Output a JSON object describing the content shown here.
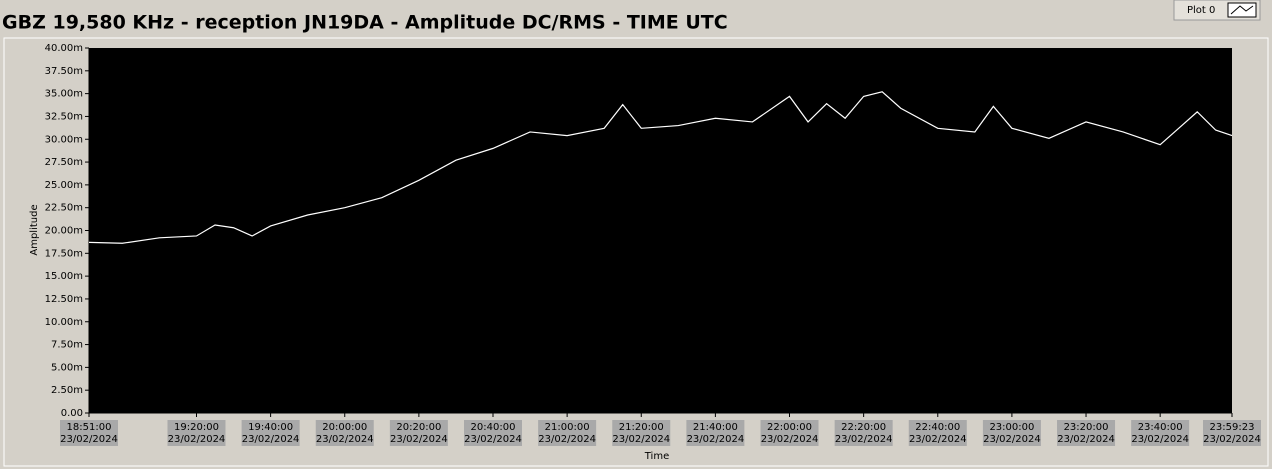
{
  "chart_data": {
    "type": "line",
    "title": "GBZ  19,580 KHz - reception JN19DA -  Amplitude DC/RMS   - TIME UTC",
    "legend": "Plot 0",
    "x_label": "Time",
    "y_label": "Amplitude",
    "x": [
      "2024-02-23T18:51:00",
      "2024-02-23T19:00:00",
      "2024-02-23T19:10:00",
      "2024-02-23T19:20:00",
      "2024-02-23T19:25:00",
      "2024-02-23T19:30:00",
      "2024-02-23T19:35:00",
      "2024-02-23T19:40:00",
      "2024-02-23T19:50:00",
      "2024-02-23T20:00:00",
      "2024-02-23T20:10:00",
      "2024-02-23T20:20:00",
      "2024-02-23T20:30:00",
      "2024-02-23T20:40:00",
      "2024-02-23T20:50:00",
      "2024-02-23T21:00:00",
      "2024-02-23T21:10:00",
      "2024-02-23T21:15:00",
      "2024-02-23T21:20:00",
      "2024-02-23T21:30:00",
      "2024-02-23T21:40:00",
      "2024-02-23T21:50:00",
      "2024-02-23T22:00:00",
      "2024-02-23T22:05:00",
      "2024-02-23T22:10:00",
      "2024-02-23T22:15:00",
      "2024-02-23T22:20:00",
      "2024-02-23T22:25:00",
      "2024-02-23T22:30:00",
      "2024-02-23T22:40:00",
      "2024-02-23T22:50:00",
      "2024-02-23T22:55:00",
      "2024-02-23T23:00:00",
      "2024-02-23T23:10:00",
      "2024-02-23T23:20:00",
      "2024-02-23T23:30:00",
      "2024-02-23T23:40:00",
      "2024-02-23T23:45:00",
      "2024-02-23T23:50:00",
      "2024-02-23T23:55:00",
      "2024-02-23T23:59:23"
    ],
    "series": [
      {
        "name": "Plot 0",
        "color": "#ffffff",
        "values": [
          18.7,
          18.6,
          19.2,
          19.4,
          20.6,
          20.3,
          19.4,
          20.5,
          21.7,
          22.5,
          23.6,
          25.5,
          27.7,
          29.0,
          30.8,
          30.4,
          31.2,
          33.8,
          31.2,
          31.5,
          32.3,
          31.9,
          34.7,
          31.9,
          33.9,
          32.3,
          34.7,
          35.2,
          33.4,
          31.2,
          30.8,
          33.6,
          31.2,
          30.1,
          31.9,
          30.8,
          29.4,
          31.2,
          33.0,
          31.0,
          30.4
        ]
      }
    ],
    "background": "#000000",
    "xlim": [
      "2024-02-23T18:51:00",
      "2024-02-23T23:59:23"
    ],
    "xticks": [
      {
        "value": "2024-02-23T18:51:00",
        "label": [
          "18:51:00",
          "23/02/2024"
        ]
      },
      {
        "value": "2024-02-23T19:20:00",
        "label": [
          "19:20:00",
          "23/02/2024"
        ]
      },
      {
        "value": "2024-02-23T19:40:00",
        "label": [
          "19:40:00",
          "23/02/2024"
        ]
      },
      {
        "value": "2024-02-23T20:00:00",
        "label": [
          "20:00:00",
          "23/02/2024"
        ]
      },
      {
        "value": "2024-02-23T20:20:00",
        "label": [
          "20:20:00",
          "23/02/2024"
        ]
      },
      {
        "value": "2024-02-23T20:40:00",
        "label": [
          "20:40:00",
          "23/02/2024"
        ]
      },
      {
        "value": "2024-02-23T21:00:00",
        "label": [
          "21:00:00",
          "23/02/2024"
        ]
      },
      {
        "value": "2024-02-23T21:20:00",
        "label": [
          "21:20:00",
          "23/02/2024"
        ]
      },
      {
        "value": "2024-02-23T21:40:00",
        "label": [
          "21:40:00",
          "23/02/2024"
        ]
      },
      {
        "value": "2024-02-23T22:00:00",
        "label": [
          "22:00:00",
          "23/02/2024"
        ]
      },
      {
        "value": "2024-02-23T22:20:00",
        "label": [
          "22:20:00",
          "23/02/2024"
        ]
      },
      {
        "value": "2024-02-23T22:40:00",
        "label": [
          "22:40:00",
          "23/02/2024"
        ]
      },
      {
        "value": "2024-02-23T23:00:00",
        "label": [
          "23:00:00",
          "23/02/2024"
        ]
      },
      {
        "value": "2024-02-23T23:20:00",
        "label": [
          "23:20:00",
          "23/02/2024"
        ]
      },
      {
        "value": "2024-02-23T23:40:00",
        "label": [
          "23:40:00",
          "23/02/2024"
        ]
      },
      {
        "value": "2024-02-23T23:59:23",
        "label": [
          "23:59:23",
          "23/02/2024"
        ]
      }
    ],
    "ylim": [
      0,
      40
    ],
    "yticks": [
      {
        "value": 0,
        "label": "0.00"
      },
      {
        "value": 2.5,
        "label": "2.50m"
      },
      {
        "value": 5,
        "label": "5.00m"
      },
      {
        "value": 7.5,
        "label": "7.50m"
      },
      {
        "value": 10,
        "label": "10.00m"
      },
      {
        "value": 12.5,
        "label": "12.50m"
      },
      {
        "value": 15,
        "label": "15.00m"
      },
      {
        "value": 17.5,
        "label": "17.50m"
      },
      {
        "value": 20,
        "label": "20.00m"
      },
      {
        "value": 22.5,
        "label": "22.50m"
      },
      {
        "value": 25,
        "label": "25.00m"
      },
      {
        "value": 27.5,
        "label": "27.50m"
      },
      {
        "value": 30,
        "label": "30.00m"
      },
      {
        "value": 32.5,
        "label": "32.50m"
      },
      {
        "value": 35,
        "label": "35.00m"
      },
      {
        "value": 37.5,
        "label": "37.50m"
      },
      {
        "value": 40,
        "label": "40.00m"
      }
    ]
  }
}
